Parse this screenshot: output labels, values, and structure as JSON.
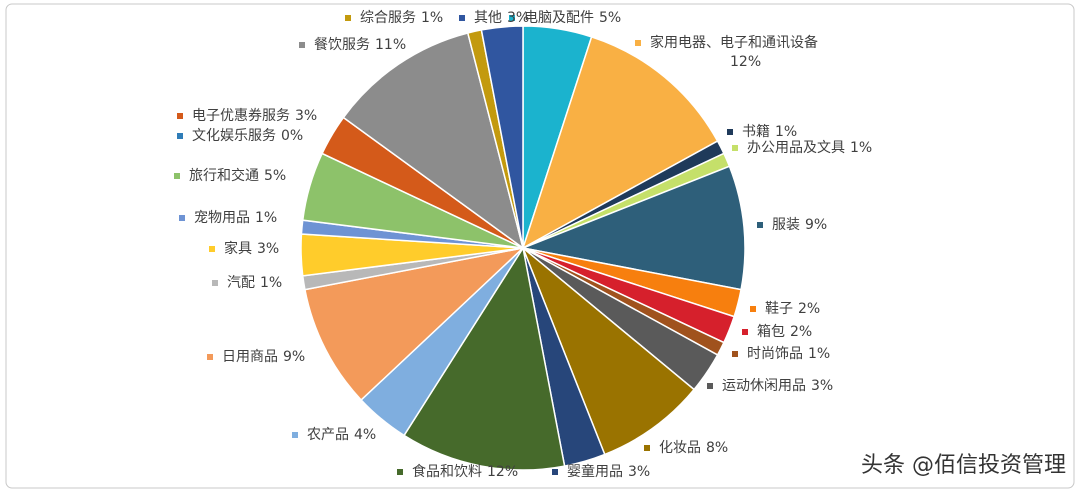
{
  "chart_data": {
    "type": "pie",
    "categories": [
      "电脑及配件",
      "家用电器、电子和通讯设备",
      "书籍",
      "办公用品及文具",
      "服装",
      "鞋子",
      "箱包",
      "时尚饰品",
      "运动休闲用品",
      "化妆品",
      "婴童用品",
      "食品和饮料",
      "农产品",
      "日用商品",
      "汽配",
      "家具",
      "宠物用品",
      "旅行和交通",
      "文化娱乐服务",
      "电子优惠券服务",
      "餐饮服务",
      "综合服务",
      "其他"
    ],
    "values": [
      5,
      12,
      1,
      1,
      9,
      2,
      2,
      1,
      3,
      8,
      3,
      12,
      4,
      9,
      1,
      3,
      1,
      5,
      0,
      3,
      11,
      1,
      3
    ],
    "value_labels": [
      "5%",
      "12%",
      "1%",
      "1%",
      "9%",
      "2%",
      "2%",
      "1%",
      "3%",
      "8%",
      "3%",
      "12%",
      "4%",
      "9%",
      "1%",
      "3%",
      "1%",
      "5%",
      "0%",
      "3%",
      "11%",
      "1%",
      "3%"
    ],
    "colors": [
      "#1bb3ce",
      "#f9b044",
      "#1f3a5a",
      "#c5e06a",
      "#2e5f7a",
      "#f77f0e",
      "#d6202c",
      "#a0521d",
      "#5a5a5a",
      "#9a7300",
      "#27467a",
      "#466a2b",
      "#7faedf",
      "#f39a5a",
      "#b8b8b8",
      "#ffcc2b",
      "#6e93d4",
      "#8dc26a",
      "#2f7db8",
      "#d45a1a",
      "#8c8c8c",
      "#c39a0e",
      "#3056a0"
    ],
    "watermark": "头条 @佰信投资管理"
  }
}
